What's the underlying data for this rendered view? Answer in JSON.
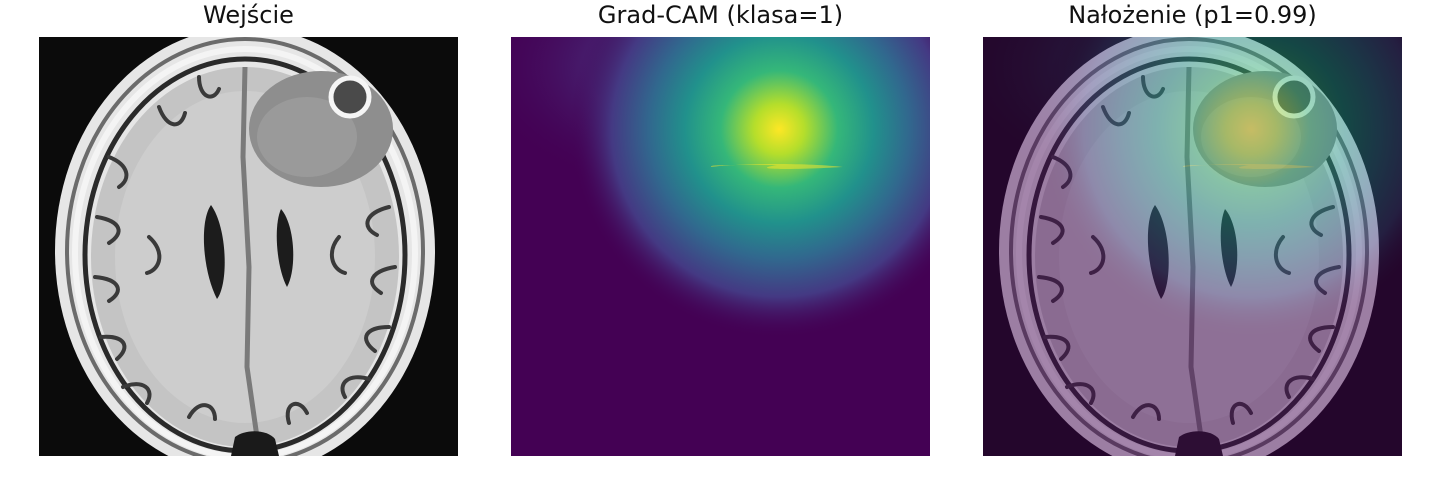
{
  "panels": [
    {
      "title": "Wejście"
    },
    {
      "title": "Grad-CAM (klasa=1)"
    },
    {
      "title": "Nałożenie (p1=0.99)"
    }
  ],
  "colors": {
    "background": "#ffffff",
    "viridis_low": "#440154",
    "viridis_mid": "#21918c",
    "viridis_high": "#fde725"
  }
}
